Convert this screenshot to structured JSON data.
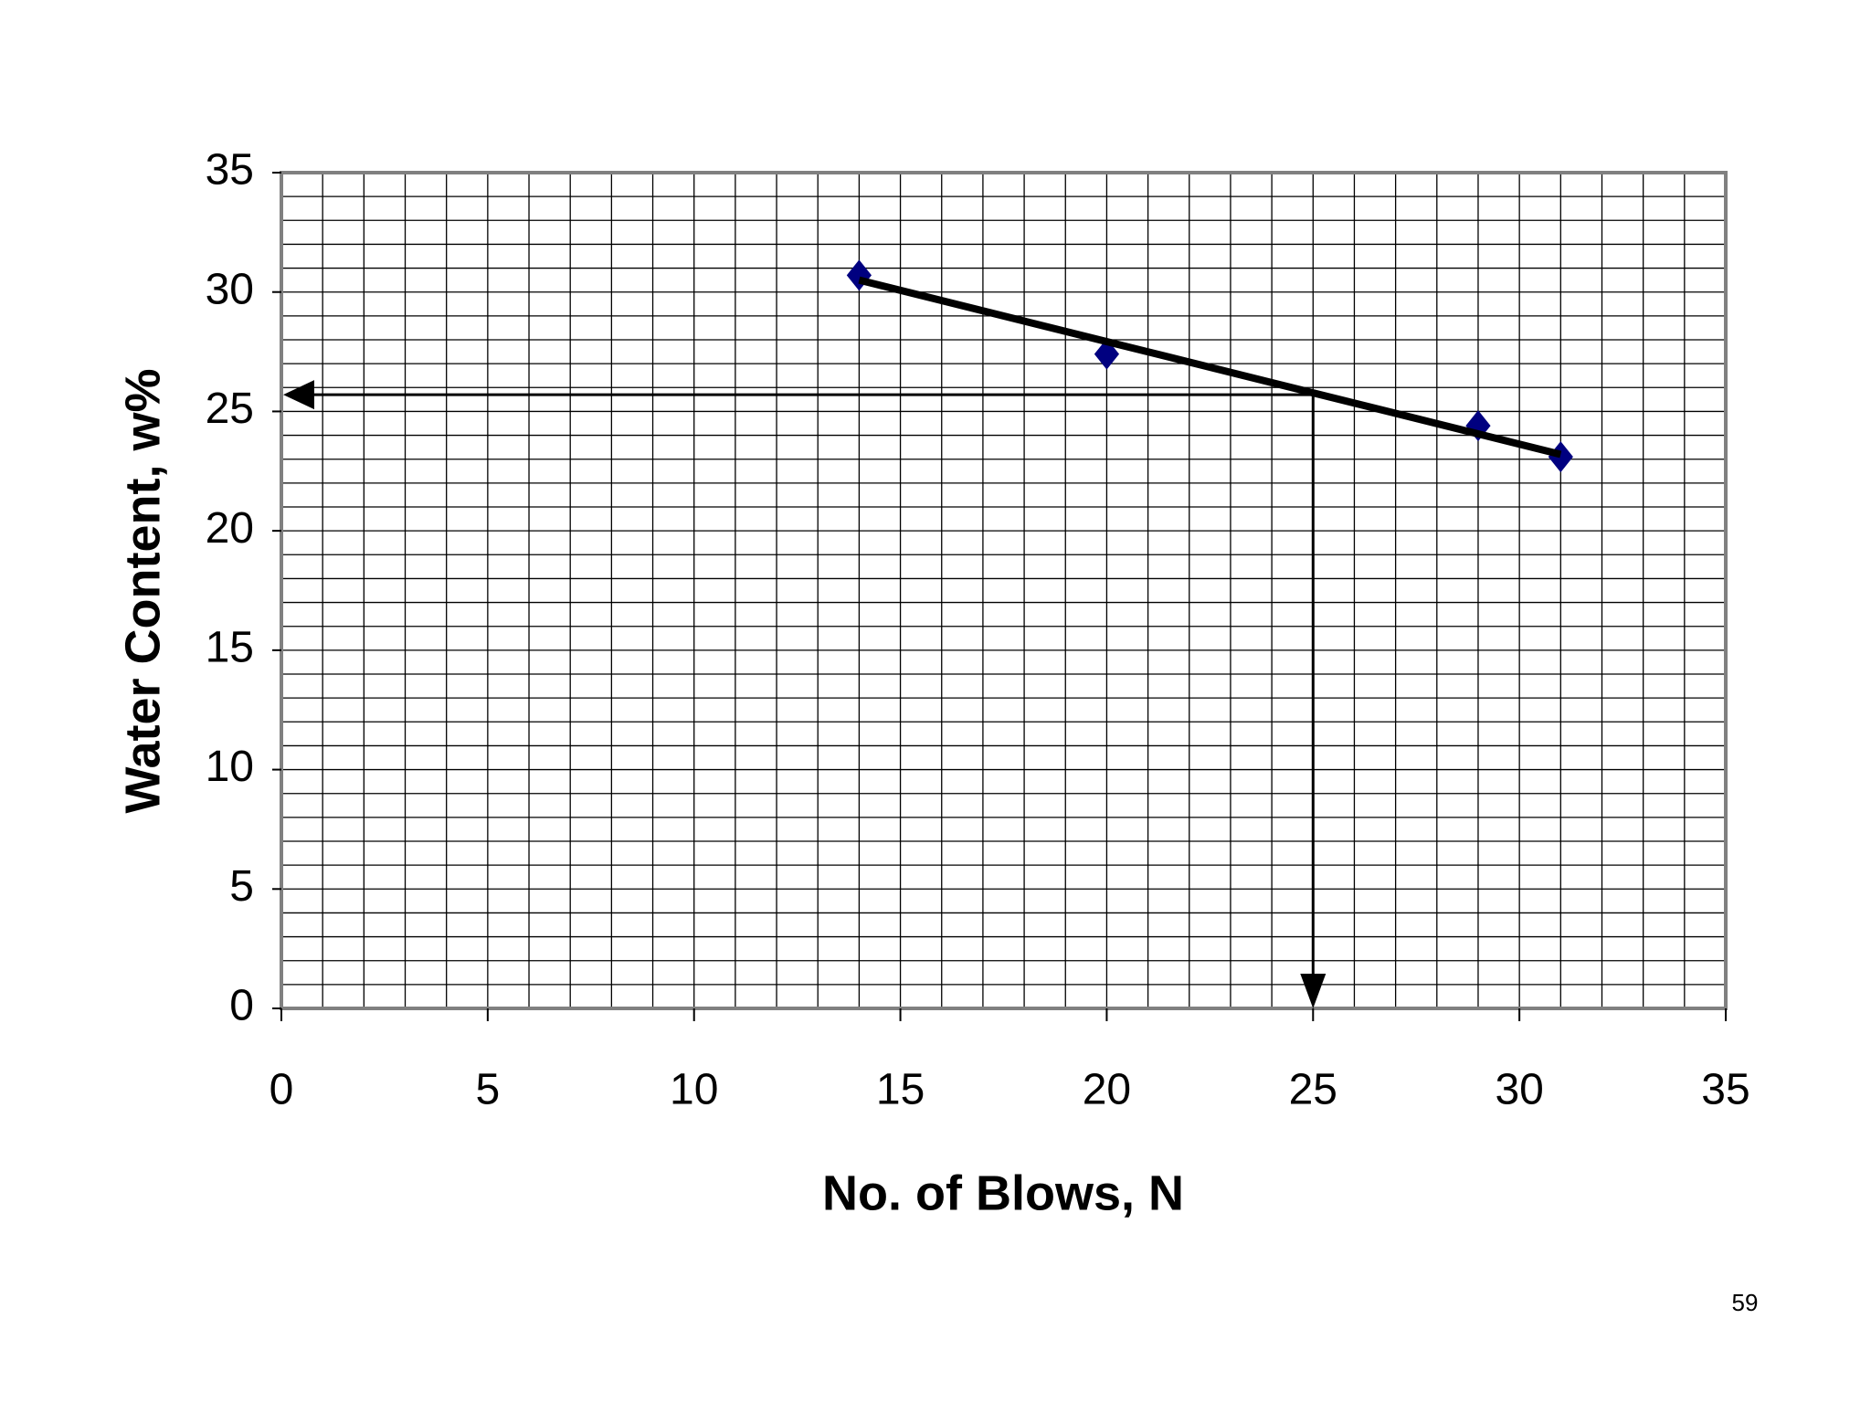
{
  "chart_data": {
    "type": "scatter",
    "x_label": "No. of Blows, N",
    "y_label": "Water Content, w%",
    "xlim": [
      0,
      35
    ],
    "xticks": [
      0,
      5,
      10,
      15,
      20,
      25,
      30,
      35
    ],
    "ylim": [
      0,
      35
    ],
    "yticks": [
      0,
      5,
      10,
      15,
      20,
      25,
      30,
      35
    ],
    "grid": true,
    "minor_step": 1,
    "series": [
      {
        "type": "scatter",
        "color": "#000080",
        "x": [
          14,
          20,
          29,
          31
        ],
        "values": [
          30.7,
          27.4,
          24.4,
          23.1
        ]
      },
      {
        "type": "line",
        "color": "#000000",
        "x": [
          14,
          31
        ],
        "values": [
          30.5,
          23.2
        ]
      }
    ],
    "reference": {
      "x": 25,
      "y": 25.7
    }
  },
  "page_number": "59"
}
